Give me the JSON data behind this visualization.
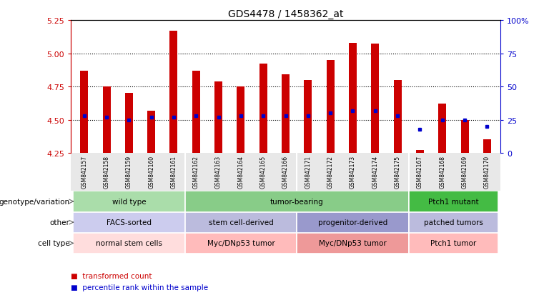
{
  "title": "GDS4478 / 1458362_at",
  "samples": [
    "GSM842157",
    "GSM842158",
    "GSM842159",
    "GSM842160",
    "GSM842161",
    "GSM842162",
    "GSM842163",
    "GSM842164",
    "GSM842165",
    "GSM842166",
    "GSM842171",
    "GSM842172",
    "GSM842173",
    "GSM842174",
    "GSM842175",
    "GSM842167",
    "GSM842168",
    "GSM842169",
    "GSM842170"
  ],
  "bar_values": [
    4.87,
    4.75,
    4.7,
    4.57,
    5.17,
    4.87,
    4.79,
    4.75,
    4.92,
    4.84,
    4.8,
    4.95,
    5.08,
    5.07,
    4.8,
    4.27,
    4.62,
    4.5,
    4.35
  ],
  "bar_base": 4.25,
  "blue_values": [
    4.53,
    4.52,
    4.5,
    4.52,
    4.52,
    4.53,
    4.52,
    4.53,
    4.53,
    4.53,
    4.53,
    4.55,
    4.57,
    4.57,
    4.53,
    4.43,
    4.5,
    4.5,
    4.45
  ],
  "ylim": [
    4.25,
    5.25
  ],
  "yticks": [
    4.25,
    4.5,
    4.75,
    5.0,
    5.25
  ],
  "right_yticks": [
    0,
    25,
    50,
    75,
    100
  ],
  "right_ytick_labels": [
    "0",
    "25",
    "50",
    "75",
    "100%"
  ],
  "bar_color": "#cc0000",
  "blue_color": "#0000cc",
  "background_color": "#ffffff",
  "tick_label_color": "#cc0000",
  "right_tick_color": "#0000cc",
  "groups": [
    {
      "label": "wild type",
      "start": 0,
      "end": 5,
      "color": "#aaddaa"
    },
    {
      "label": "tumor-bearing",
      "start": 5,
      "end": 15,
      "color": "#88cc88"
    },
    {
      "label": "Ptch1 mutant",
      "start": 15,
      "end": 19,
      "color": "#44bb44"
    }
  ],
  "other_groups": [
    {
      "label": "FACS-sorted",
      "start": 0,
      "end": 5,
      "color": "#ccccee"
    },
    {
      "label": "stem cell-derived",
      "start": 5,
      "end": 10,
      "color": "#bbbbdd"
    },
    {
      "label": "progenitor-derived",
      "start": 10,
      "end": 15,
      "color": "#9999cc"
    },
    {
      "label": "patched tumors",
      "start": 15,
      "end": 19,
      "color": "#bbbbdd"
    }
  ],
  "cell_groups": [
    {
      "label": "normal stem cells",
      "start": 0,
      "end": 5,
      "color": "#ffdddd"
    },
    {
      "label": "Myc/DNp53 tumor",
      "start": 5,
      "end": 10,
      "color": "#ffbbbb"
    },
    {
      "label": "Myc/DNp53 tumor",
      "start": 10,
      "end": 15,
      "color": "#ee9999"
    },
    {
      "label": "Ptch1 tumor",
      "start": 15,
      "end": 19,
      "color": "#ffbbbb"
    }
  ],
  "row_labels": [
    "genotype/variation",
    "other",
    "cell type"
  ],
  "legend_items": [
    {
      "label": "transformed count",
      "color": "#cc0000"
    },
    {
      "label": "percentile rank within the sample",
      "color": "#0000cc"
    }
  ],
  "group_separators": [
    4.5,
    9.5,
    14.5
  ]
}
